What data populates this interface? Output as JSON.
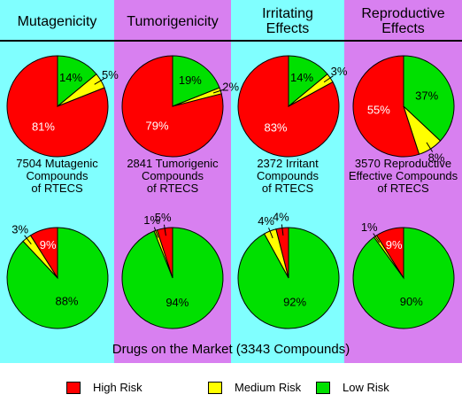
{
  "colors": {
    "high": "#ff0000",
    "medium": "#ffff00",
    "low": "#00e000",
    "cyan_bg": "#80ffff",
    "purple_bg": "#d880f0"
  },
  "columns": [
    {
      "title": "Mutagenicity",
      "caption": "7504 Mutagenic\nCompounds\nof RTECS"
    },
    {
      "title": "Tumorigenicity",
      "caption": "2841 Tumorigenic\nCompounds\nof RTECS"
    },
    {
      "title": "Irritating\nEffects",
      "caption": "2372 Irritant\nCompounds\nof RTECS"
    },
    {
      "title": "Reproductive\nEffects",
      "caption": "3570 Reproductive\nEffective Compounds\nof RTECS"
    }
  ],
  "market_title": "Drugs on the Market (3343 Compounds)",
  "legend": [
    {
      "label": "High Risk",
      "key": "high"
    },
    {
      "label": "Medium Risk",
      "key": "medium"
    },
    {
      "label": "Low Risk",
      "key": "low"
    }
  ],
  "chart_data": [
    {
      "type": "pie",
      "title": "Mutagenicity",
      "subtitle": "7504 Mutagenic Compounds of RTECS",
      "categories": [
        "High Risk",
        "Medium Risk",
        "Low Risk"
      ],
      "values": [
        81,
        5,
        14
      ],
      "labels": [
        "81%",
        "5%",
        "14%"
      ]
    },
    {
      "type": "pie",
      "title": "Tumorigenicity",
      "subtitle": "2841 Tumorigenic Compounds of RTECS",
      "categories": [
        "High Risk",
        "Medium Risk",
        "Low Risk"
      ],
      "values": [
        79,
        2,
        19
      ],
      "labels": [
        "79%",
        "2%",
        "19%"
      ]
    },
    {
      "type": "pie",
      "title": "Irritating Effects",
      "subtitle": "2372 Irritant Compounds of RTECS",
      "categories": [
        "High Risk",
        "Medium Risk",
        "Low Risk"
      ],
      "values": [
        83,
        3,
        14
      ],
      "labels": [
        "83%",
        "3%",
        "14%"
      ]
    },
    {
      "type": "pie",
      "title": "Reproductive Effects",
      "subtitle": "3570 Reproductive Effective Compounds of RTECS",
      "categories": [
        "High Risk",
        "Medium Risk",
        "Low Risk"
      ],
      "values": [
        55,
        8,
        37
      ],
      "labels": [
        "55%",
        "8%",
        "37%"
      ]
    },
    {
      "type": "pie",
      "title": "Mutagenicity",
      "subtitle": "Drugs on the Market (3343 Compounds)",
      "categories": [
        "High Risk",
        "Medium Risk",
        "Low Risk"
      ],
      "values": [
        9,
        3,
        88
      ],
      "labels": [
        "9%",
        "3%",
        "88%"
      ]
    },
    {
      "type": "pie",
      "title": "Tumorigenicity",
      "subtitle": "Drugs on the Market (3343 Compounds)",
      "categories": [
        "High Risk",
        "Medium Risk",
        "Low Risk"
      ],
      "values": [
        5,
        1,
        94
      ],
      "labels": [
        "5%",
        "1%",
        "94%"
      ]
    },
    {
      "type": "pie",
      "title": "Irritating Effects",
      "subtitle": "Drugs on the Market (3343 Compounds)",
      "categories": [
        "High Risk",
        "Medium Risk",
        "Low Risk"
      ],
      "values": [
        4,
        4,
        92
      ],
      "labels": [
        "4%",
        "4%",
        "92%"
      ]
    },
    {
      "type": "pie",
      "title": "Reproductive Effects",
      "subtitle": "Drugs on the Market (3343 Compounds)",
      "categories": [
        "High Risk",
        "Medium Risk",
        "Low Risk"
      ],
      "values": [
        9,
        1,
        90
      ],
      "labels": [
        "9%",
        "1%",
        "90%"
      ]
    }
  ]
}
